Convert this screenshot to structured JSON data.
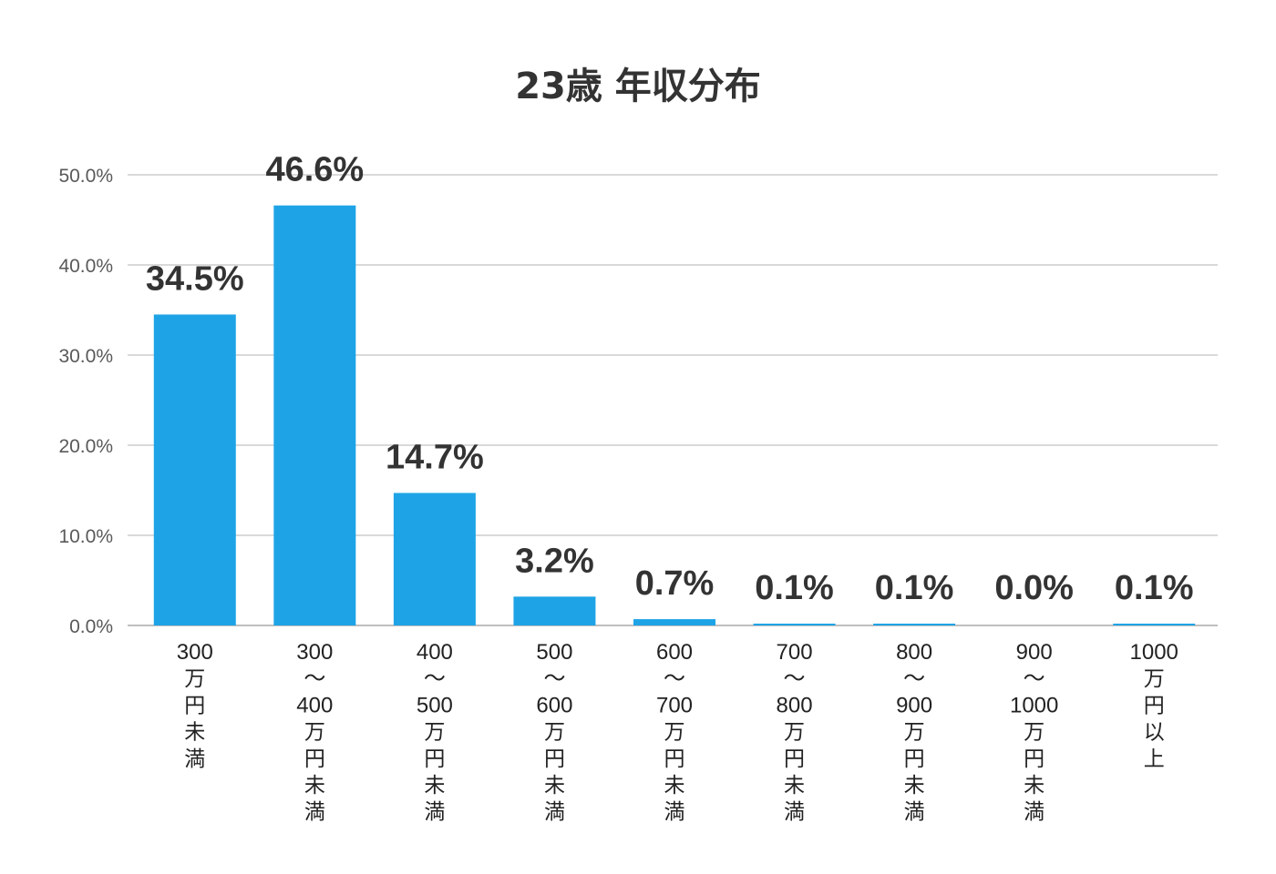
{
  "chart_data": {
    "type": "bar",
    "title": "23歳 年収分布",
    "categories": [
      "300万円未満",
      "300～400万円未満",
      "400～500万円未満",
      "500～600万円未満",
      "600～700万円未満",
      "700～800万円未満",
      "800～900万円未満",
      "900～1000万円未満",
      "1000万円以上"
    ],
    "category_label_lines": [
      [
        "300",
        "万",
        "円",
        "未",
        "満"
      ],
      [
        "300",
        "～",
        "400",
        "万",
        "円",
        "未",
        "満"
      ],
      [
        "400",
        "～",
        "500",
        "万",
        "円",
        "未",
        "満"
      ],
      [
        "500",
        "～",
        "600",
        "万",
        "円",
        "未",
        "満"
      ],
      [
        "600",
        "～",
        "700",
        "万",
        "円",
        "未",
        "満"
      ],
      [
        "700",
        "～",
        "800",
        "万",
        "円",
        "未",
        "満"
      ],
      [
        "800",
        "～",
        "900",
        "万",
        "円",
        "未",
        "満"
      ],
      [
        "900",
        "～",
        "1000",
        "万",
        "円",
        "未",
        "満"
      ],
      [
        "1000",
        "万",
        "円",
        "以",
        "上"
      ]
    ],
    "values": [
      34.5,
      46.6,
      14.7,
      3.2,
      0.7,
      0.1,
      0.1,
      0.0,
      0.1
    ],
    "data_labels": [
      "34.5%",
      "46.6%",
      "14.7%",
      "3.2%",
      "0.7%",
      "0.1%",
      "0.1%",
      "0.0%",
      "0.1%"
    ],
    "ylim": [
      0,
      50
    ],
    "yticks": [
      0,
      10,
      20,
      30,
      40,
      50
    ],
    "ytick_labels": [
      "0.0%",
      "10.0%",
      "20.0%",
      "30.0%",
      "40.0%",
      "50.0%"
    ],
    "xlabel": "",
    "ylabel": "",
    "grid": true,
    "legend": "none",
    "bar_color": "#1EA4E6",
    "grid_color": "#D9D9D9"
  }
}
